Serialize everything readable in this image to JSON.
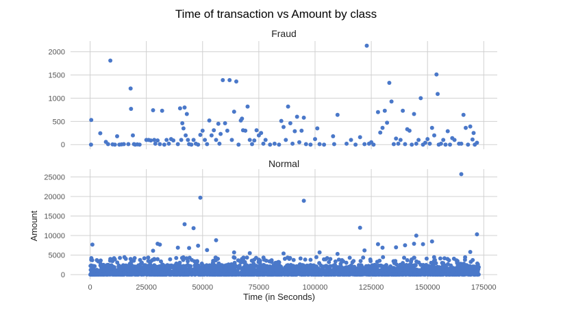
{
  "suptitle": "Time of transaction vs Amount by class",
  "colors": {
    "point": "#4a78c9",
    "grid": "#d0d0d0",
    "axis_text": "#555555",
    "title_text": "#222222",
    "background": "#ffffff"
  },
  "chart_data": [
    {
      "type": "scatter",
      "title": "Fraud",
      "xlabel": "",
      "ylabel": "",
      "xlim": [
        -8700,
        181000
      ],
      "ylim": [
        -100,
        2230
      ],
      "xticks": [
        0,
        25000,
        50000,
        75000,
        100000,
        125000,
        150000,
        175000
      ],
      "xtick_labels_visible": false,
      "yticks": [
        0,
        500,
        1000,
        1500,
        2000
      ],
      "ytick_labels": [
        "0",
        "500",
        "1000",
        "1500",
        "2000"
      ],
      "grid": true,
      "points": [
        [
          406,
          0
        ],
        [
          500,
          530
        ],
        [
          4500,
          245
        ],
        [
          7000,
          60
        ],
        [
          8000,
          10
        ],
        [
          9000,
          1810
        ],
        [
          10000,
          5
        ],
        [
          11000,
          0
        ],
        [
          12000,
          180
        ],
        [
          13000,
          0
        ],
        [
          14000,
          5
        ],
        [
          15000,
          10
        ],
        [
          17000,
          10
        ],
        [
          18000,
          1210
        ],
        [
          18200,
          770
        ],
        [
          19000,
          200
        ],
        [
          19500,
          10
        ],
        [
          20000,
          0
        ],
        [
          21000,
          5
        ],
        [
          22000,
          0
        ],
        [
          25000,
          100
        ],
        [
          26000,
          100
        ],
        [
          27000,
          90
        ],
        [
          28000,
          740
        ],
        [
          28500,
          100
        ],
        [
          29000,
          20
        ],
        [
          30000,
          90
        ],
        [
          31000,
          10
        ],
        [
          32000,
          730
        ],
        [
          33000,
          0
        ],
        [
          34000,
          100
        ],
        [
          35000,
          20
        ],
        [
          36000,
          120
        ],
        [
          37000,
          90
        ],
        [
          39000,
          10
        ],
        [
          40000,
          780
        ],
        [
          40500,
          100
        ],
        [
          41000,
          460
        ],
        [
          41500,
          350
        ],
        [
          42000,
          800
        ],
        [
          42500,
          200
        ],
        [
          43000,
          660
        ],
        [
          43500,
          100
        ],
        [
          44000,
          10
        ],
        [
          45000,
          0
        ],
        [
          46000,
          100
        ],
        [
          47000,
          20
        ],
        [
          48000,
          0
        ],
        [
          49000,
          210
        ],
        [
          50000,
          300
        ],
        [
          51000,
          100
        ],
        [
          52000,
          10
        ],
        [
          53000,
          520
        ],
        [
          54000,
          200
        ],
        [
          55000,
          310
        ],
        [
          56000,
          100
        ],
        [
          57000,
          450
        ],
        [
          57500,
          20
        ],
        [
          58000,
          230
        ],
        [
          59000,
          1390
        ],
        [
          60000,
          460
        ],
        [
          61000,
          300
        ],
        [
          62000,
          1390
        ],
        [
          63000,
          100
        ],
        [
          64000,
          710
        ],
        [
          65000,
          1360
        ],
        [
          66000,
          0
        ],
        [
          67000,
          520
        ],
        [
          67500,
          560
        ],
        [
          68000,
          310
        ],
        [
          69000,
          300
        ],
        [
          70000,
          820
        ],
        [
          71000,
          100
        ],
        [
          72000,
          10
        ],
        [
          73000,
          90
        ],
        [
          74000,
          310
        ],
        [
          75000,
          200
        ],
        [
          76000,
          250
        ],
        [
          77000,
          20
        ],
        [
          78000,
          100
        ],
        [
          80000,
          0
        ],
        [
          82000,
          20
        ],
        [
          84000,
          0
        ],
        [
          85000,
          510
        ],
        [
          86000,
          380
        ],
        [
          87000,
          100
        ],
        [
          88000,
          820
        ],
        [
          89000,
          460
        ],
        [
          90000,
          20
        ],
        [
          91000,
          290
        ],
        [
          92000,
          600
        ],
        [
          93000,
          50
        ],
        [
          94000,
          300
        ],
        [
          95000,
          580
        ],
        [
          96000,
          10
        ],
        [
          98000,
          0
        ],
        [
          100000,
          120
        ],
        [
          101000,
          350
        ],
        [
          102000,
          10
        ],
        [
          104000,
          0
        ],
        [
          108000,
          180
        ],
        [
          108500,
          10
        ],
        [
          110000,
          640
        ],
        [
          114000,
          20
        ],
        [
          116000,
          100
        ],
        [
          118000,
          0
        ],
        [
          120000,
          160
        ],
        [
          122000,
          10
        ],
        [
          123000,
          2130
        ],
        [
          124000,
          20
        ],
        [
          125000,
          50
        ],
        [
          126000,
          0
        ],
        [
          128000,
          700
        ],
        [
          129000,
          260
        ],
        [
          130000,
          360
        ],
        [
          131000,
          730
        ],
        [
          132000,
          470
        ],
        [
          133000,
          1330
        ],
        [
          134000,
          930
        ],
        [
          135000,
          10
        ],
        [
          136000,
          130
        ],
        [
          137000,
          20
        ],
        [
          138000,
          100
        ],
        [
          139000,
          730
        ],
        [
          140000,
          10
        ],
        [
          141000,
          330
        ],
        [
          142000,
          300
        ],
        [
          143000,
          0
        ],
        [
          144000,
          660
        ],
        [
          145000,
          20
        ],
        [
          146000,
          100
        ],
        [
          147000,
          1000
        ],
        [
          148000,
          0
        ],
        [
          149000,
          40
        ],
        [
          150000,
          120
        ],
        [
          151000,
          20
        ],
        [
          152000,
          360
        ],
        [
          153000,
          200
        ],
        [
          154000,
          1510
        ],
        [
          154500,
          1090
        ],
        [
          155000,
          0
        ],
        [
          156000,
          20
        ],
        [
          157000,
          100
        ],
        [
          158000,
          0
        ],
        [
          159000,
          290
        ],
        [
          160000,
          0
        ],
        [
          161000,
          140
        ],
        [
          162000,
          100
        ],
        [
          164000,
          20
        ],
        [
          165000,
          20
        ],
        [
          166000,
          640
        ],
        [
          167000,
          360
        ],
        [
          168000,
          0
        ],
        [
          169000,
          390
        ],
        [
          170000,
          110
        ],
        [
          170500,
          250
        ],
        [
          171000,
          0
        ],
        [
          172000,
          40
        ]
      ]
    },
    {
      "type": "scatter",
      "title": "Normal",
      "xlabel": "Time (in Seconds)",
      "ylabel": "Amount",
      "xlim": [
        -8700,
        181000
      ],
      "ylim": [
        -1200,
        27000
      ],
      "xticks": [
        0,
        25000,
        50000,
        75000,
        100000,
        125000,
        150000,
        175000
      ],
      "xtick_labels": [
        "0",
        "25000",
        "50000",
        "75000",
        "100000",
        "125000",
        "150000",
        "175000"
      ],
      "yticks": [
        0,
        5000,
        10000,
        15000,
        20000,
        25000
      ],
      "ytick_labels": [
        "0",
        "5000",
        "10000",
        "15000",
        "20000",
        "25000"
      ],
      "grid": true,
      "dense_band": {
        "x_range": [
          0,
          172792
        ],
        "typical_max": 2500,
        "spike_max": 4500
      },
      "outliers": [
        [
          1000,
          7700
        ],
        [
          3000,
          3700
        ],
        [
          500,
          3800
        ],
        [
          9000,
          4000
        ],
        [
          11000,
          3900
        ],
        [
          18000,
          4000
        ],
        [
          28000,
          6100
        ],
        [
          30000,
          7900
        ],
        [
          31000,
          7700
        ],
        [
          39000,
          6900
        ],
        [
          42000,
          12900
        ],
        [
          44000,
          6800
        ],
        [
          46000,
          11900
        ],
        [
          48000,
          7400
        ],
        [
          49000,
          19700
        ],
        [
          52000,
          6300
        ],
        [
          56000,
          8800
        ],
        [
          64000,
          5700
        ],
        [
          71000,
          5500
        ],
        [
          86000,
          5400
        ],
        [
          95000,
          18900
        ],
        [
          102000,
          5700
        ],
        [
          110000,
          5300
        ],
        [
          120000,
          12000
        ],
        [
          122000,
          6200
        ],
        [
          128000,
          7800
        ],
        [
          130000,
          6900
        ],
        [
          136000,
          7000
        ],
        [
          140000,
          7500
        ],
        [
          144000,
          7900
        ],
        [
          145000,
          10000
        ],
        [
          148000,
          7800
        ],
        [
          152000,
          8500
        ],
        [
          165000,
          25700
        ],
        [
          169000,
          5800
        ],
        [
          172000,
          10300
        ]
      ]
    }
  ]
}
